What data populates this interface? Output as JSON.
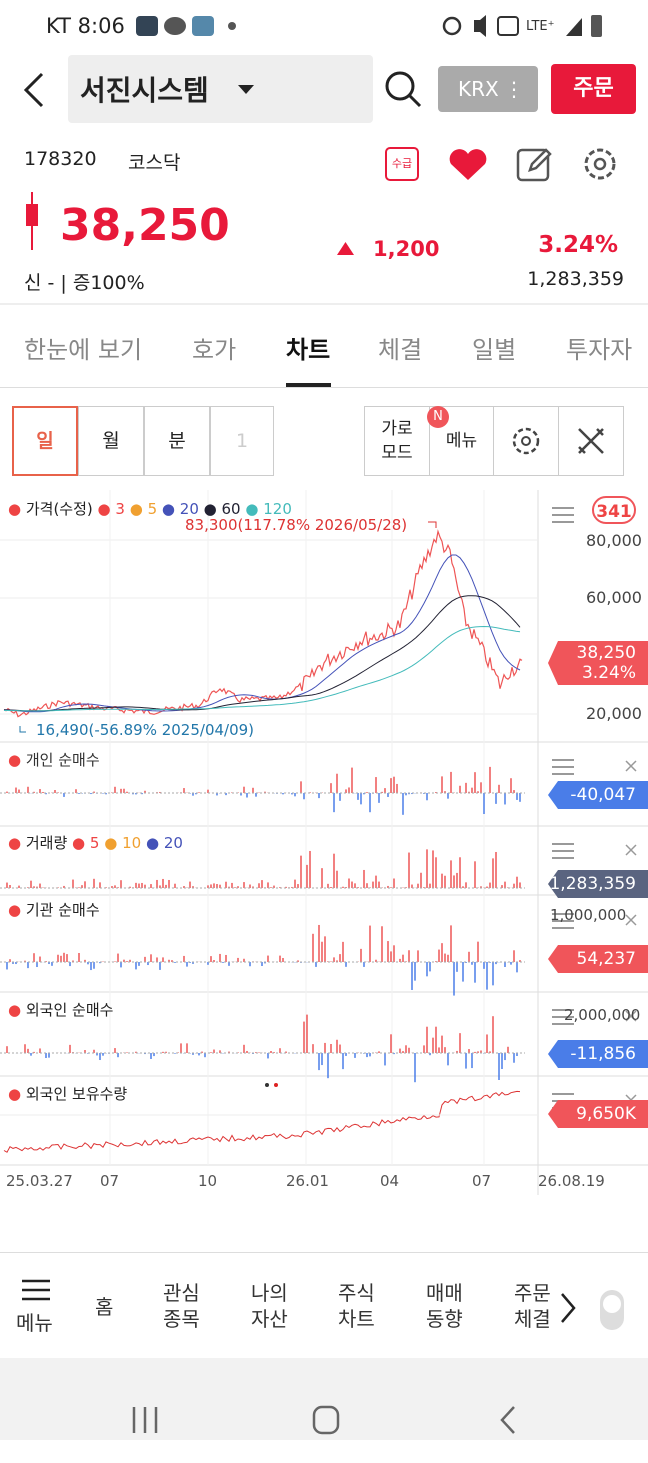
{
  "status_bar": {
    "time": "KT 8:06"
  },
  "header": {
    "title": "서진시스템",
    "exchange": "KRX",
    "order_button": "주문"
  },
  "stock": {
    "code": "178320",
    "market": "코스닥",
    "badge": "수급",
    "price": "38,250",
    "change": "1,200",
    "change_rate": "3.24%",
    "info": "신 - | 증100%",
    "volume": "1,283,359"
  },
  "tabs": [
    "한눈에 보기",
    "호가",
    "차트",
    "체결",
    "일별",
    "투자자"
  ],
  "toolbar": {
    "periods": [
      "일",
      "월",
      "분",
      "1"
    ],
    "landscape": "가로\n모드",
    "new_badge": "N",
    "menu": "메뉴"
  },
  "price_panel": {
    "legend": [
      "가격(수정)",
      "3",
      "5",
      "20",
      "60",
      "120"
    ],
    "count_badge": "341",
    "max_label": "83,300(117.78% 2026/05/28)",
    "min_label": "16,490(-56.89% 2025/04/09)",
    "y_labels": [
      "80,000",
      "60,000",
      "20,000"
    ],
    "price_tag": "38,250",
    "rate_tag": "3.24%"
  },
  "panels": [
    {
      "title": "개인 순매수",
      "tag": "-40,047"
    },
    {
      "title": "거래량",
      "legend": [
        "5",
        "10",
        "20"
      ],
      "tag": "1,283,359"
    },
    {
      "title": "기관 순매수",
      "tag": "54,237",
      "scale": "1,000,000"
    },
    {
      "title": "외국인 순매수",
      "tag": "-11,856",
      "scale": "2,000,000"
    },
    {
      "title": "외국인 보유수량",
      "tag": "9,650K"
    }
  ],
  "x_labels": [
    "25.03.27",
    "07",
    "10",
    "26.01",
    "04",
    "07",
    "26.08.19"
  ],
  "bottom_nav": [
    "메뉴",
    "홈",
    "관심\n종목",
    "나의\n자산",
    "주식\n차트",
    "매매\n동향",
    "주문\n체결"
  ]
}
